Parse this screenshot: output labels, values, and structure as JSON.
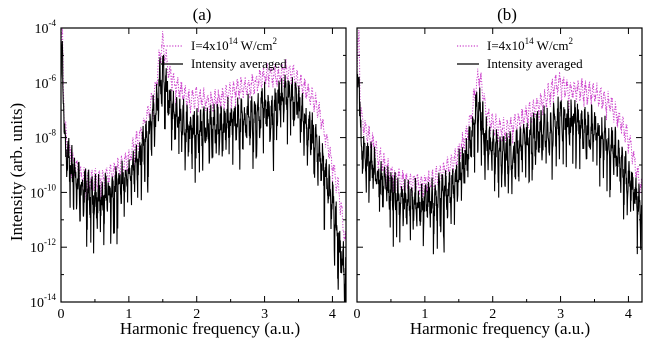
{
  "chart_data": [
    {
      "type": "line",
      "panel_label": "(a)",
      "xlabel": "Harmonic frequency (a.u.)",
      "ylabel": "Intensity (arb. units)",
      "xlim": [
        0,
        4.2
      ],
      "ylim": [
        1e-14,
        0.0001
      ],
      "yscale": "log",
      "xticks": [
        "0",
        "1",
        "2",
        "3",
        "4"
      ],
      "yticks": [
        {
          "base": "10",
          "exp": "-14",
          "value": 1e-14
        },
        {
          "base": "10",
          "exp": "-12",
          "value": 1e-12
        },
        {
          "base": "10",
          "exp": "-10",
          "value": 1e-10
        },
        {
          "base": "10",
          "exp": "-8",
          "value": 1e-08
        },
        {
          "base": "10",
          "exp": "-6",
          "value": 1e-06
        },
        {
          "base": "10",
          "exp": "-4",
          "value": 0.0001
        }
      ],
      "legend": {
        "placement": "top-right",
        "entries": [
          {
            "pre": "I=4x10",
            "sup": "14",
            "mid": " W/cm",
            "sup2": "2",
            "style": "dotted",
            "color": "#cc44cc"
          },
          {
            "pre": "Intensity averaged",
            "sup": "",
            "mid": "",
            "sup2": "",
            "style": "solid",
            "color": "#000000"
          }
        ]
      },
      "series": [
        {
          "name": "I=4x10^14 W/cm^2",
          "style": "dotted",
          "color": "#cc44cc",
          "x": [
            0.0,
            0.02,
            0.05,
            0.1,
            0.2,
            0.3,
            0.4,
            0.5,
            0.6,
            0.7,
            0.8,
            0.9,
            1.0,
            1.1,
            1.2,
            1.3,
            1.4,
            1.45,
            1.5,
            1.55,
            1.6,
            1.7,
            1.8,
            1.9,
            2.0,
            2.2,
            2.4,
            2.6,
            2.8,
            2.9,
            3.0,
            3.1,
            3.2,
            3.3,
            3.4,
            3.5,
            3.6,
            3.7,
            3.8,
            3.9,
            4.0,
            4.1,
            4.2
          ],
          "y": [
            1e-05,
            8e-05,
            3e-08,
            5e-09,
            1e-09,
            4e-10,
            3e-10,
            3e-10,
            3e-10,
            4e-10,
            6e-10,
            1e-09,
            2e-09,
            6e-09,
            2e-08,
            1e-07,
            8e-07,
            1e-05,
            3e-05,
            8e-06,
            2e-06,
            8e-07,
            4e-07,
            2e-07,
            3e-07,
            2e-07,
            3e-07,
            6e-07,
            8e-07,
            1e-06,
            2e-06,
            2e-06,
            1.5e-06,
            3e-06,
            2e-06,
            1e-06,
            6e-07,
            3e-07,
            1e-07,
            1e-08,
            1e-09,
            1e-10,
            1e-12
          ]
        },
        {
          "name": "Intensity averaged",
          "style": "solid",
          "color": "#000000",
          "x": [
            0.0,
            0.02,
            0.05,
            0.1,
            0.2,
            0.3,
            0.4,
            0.5,
            0.6,
            0.7,
            0.8,
            0.9,
            1.0,
            1.1,
            1.2,
            1.3,
            1.4,
            1.45,
            1.5,
            1.55,
            1.6,
            1.7,
            1.8,
            1.9,
            2.0,
            2.2,
            2.4,
            2.6,
            2.8,
            2.9,
            3.0,
            3.1,
            3.2,
            3.3,
            3.4,
            3.5,
            3.6,
            3.7,
            3.8,
            3.9,
            4.0,
            4.1,
            4.2
          ],
          "y": [
            1e-06,
            5e-05,
            1e-08,
            2e-09,
            4e-10,
            1.5e-10,
            8e-11,
            6e-11,
            6e-11,
            8e-11,
            1.2e-10,
            2e-10,
            5e-10,
            1e-09,
            3e-09,
            1.5e-08,
            1e-07,
            8e-07,
            2e-06,
            6e-07,
            2e-07,
            7e-08,
            3e-08,
            1.5e-08,
            2e-08,
            2e-08,
            3e-08,
            4e-08,
            5e-08,
            5e-08,
            1.5e-07,
            4e-08,
            2e-07,
            3e-07,
            2e-07,
            1.5e-07,
            4e-08,
            1e-08,
            3e-09,
            4e-10,
            5e-11,
            1e-12,
            1e-13
          ]
        }
      ]
    },
    {
      "type": "line",
      "panel_label": "(b)",
      "xlabel": "Harmonic frequency (a.u.)",
      "ylabel": "",
      "xlim": [
        0,
        4.2
      ],
      "ylim": [
        1e-14,
        0.0001
      ],
      "yscale": "log",
      "xticks": [
        "0",
        "1",
        "2",
        "3",
        "4"
      ],
      "yticks": [],
      "legend": {
        "placement": "top-right",
        "entries": [
          {
            "pre": "I=4x10",
            "sup": "14",
            "mid": " W/cm",
            "sup2": "2",
            "style": "dotted",
            "color": "#cc44cc"
          },
          {
            "pre": "Intensity averaged",
            "sup": "",
            "mid": "",
            "sup2": "",
            "style": "solid",
            "color": "#000000"
          }
        ]
      },
      "series": [
        {
          "name": "I=4x10^14 W/cm^2",
          "style": "dotted",
          "color": "#cc44cc",
          "x": [
            0.0,
            0.03,
            0.05,
            0.1,
            0.2,
            0.4,
            0.6,
            0.8,
            1.0,
            1.2,
            1.4,
            1.5,
            1.6,
            1.7,
            1.75,
            1.8,
            1.85,
            1.9,
            2.0,
            2.2,
            2.4,
            2.6,
            2.8,
            2.9,
            3.0,
            3.1,
            3.2,
            3.3,
            3.4,
            3.5,
            3.6,
            3.7,
            3.8,
            3.9,
            4.0,
            4.1,
            4.2
          ],
          "y": [
            1e-06,
            0.0001,
            1e-07,
            3e-08,
            8e-09,
            1e-09,
            3e-10,
            2e-10,
            2e-10,
            4e-10,
            1e-09,
            3e-09,
            1e-08,
            1e-07,
            8e-07,
            2e-06,
            5e-07,
            8e-08,
            3e-08,
            2e-08,
            4e-08,
            1e-07,
            3e-07,
            8e-07,
            1e-06,
            6e-07,
            5e-07,
            6e-07,
            5e-07,
            4e-07,
            3e-07,
            2e-07,
            1e-07,
            3e-08,
            1e-08,
            1e-09,
            1e-10
          ]
        },
        {
          "name": "Intensity averaged",
          "style": "solid",
          "color": "#000000",
          "x": [
            0.0,
            0.03,
            0.05,
            0.1,
            0.2,
            0.4,
            0.6,
            0.8,
            1.0,
            1.2,
            1.4,
            1.5,
            1.6,
            1.7,
            1.75,
            1.8,
            1.85,
            1.9,
            2.0,
            2.2,
            2.4,
            2.6,
            2.8,
            2.9,
            3.0,
            3.1,
            3.2,
            3.3,
            3.4,
            3.5,
            3.6,
            3.7,
            3.8,
            3.9,
            4.0,
            4.1,
            4.2
          ],
          "y": [
            1e-07,
            5e-06,
            8e-09,
            3e-09,
            1e-09,
            2e-10,
            6e-11,
            4e-11,
            4e-11,
            6e-11,
            1.5e-10,
            4e-10,
            1.5e-09,
            1.5e-08,
            1e-07,
            1.5e-07,
            3e-08,
            8e-09,
            3e-09,
            2e-09,
            4e-09,
            1e-08,
            2e-08,
            4e-08,
            5e-08,
            3e-08,
            4e-08,
            2e-08,
            1.5e-08,
            2e-08,
            1e-08,
            6e-09,
            3e-09,
            1e-09,
            3e-10,
            8e-11,
            2e-11
          ]
        }
      ]
    }
  ]
}
